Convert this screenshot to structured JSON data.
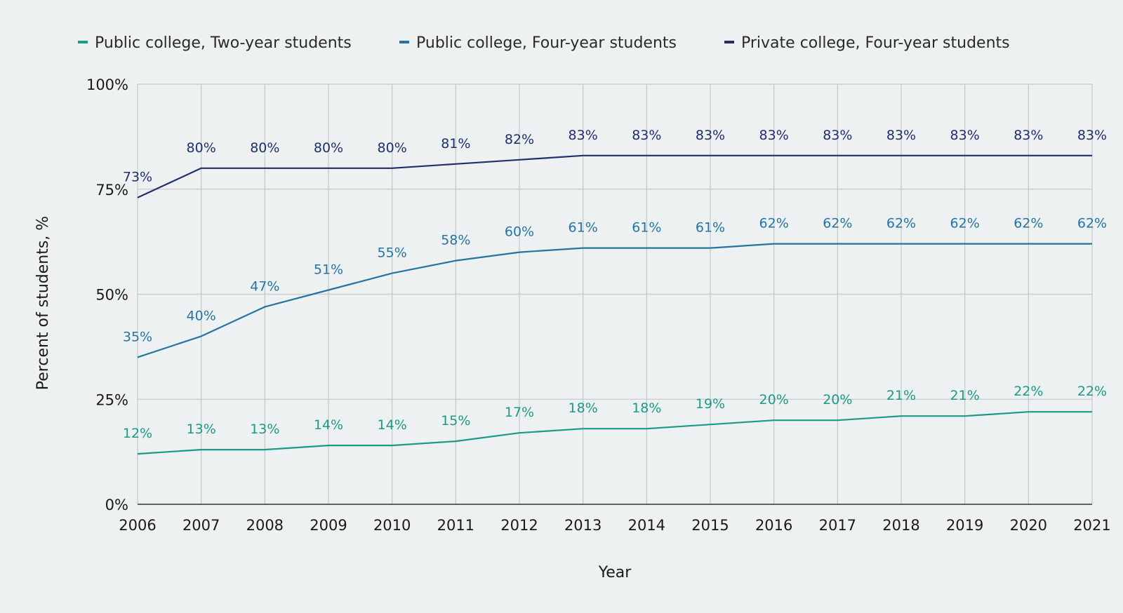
{
  "chart_data": {
    "type": "line",
    "x": [
      2006,
      2007,
      2008,
      2009,
      2010,
      2011,
      2012,
      2013,
      2014,
      2015,
      2016,
      2017,
      2018,
      2019,
      2020,
      2021
    ],
    "series": [
      {
        "name": "Public college, Two-year students",
        "color": "#1b9a86",
        "values": [
          12,
          13,
          13,
          14,
          14,
          15,
          17,
          18,
          18,
          19,
          20,
          20,
          21,
          21,
          22,
          22
        ]
      },
      {
        "name": "Public college, Four-year students",
        "color": "#2574a1",
        "values": [
          35,
          40,
          47,
          51,
          55,
          58,
          60,
          61,
          61,
          61,
          62,
          62,
          62,
          62,
          62,
          62
        ]
      },
      {
        "name": "Private college, Four-year students",
        "color": "#1e2f6c",
        "values": [
          73,
          80,
          80,
          80,
          80,
          81,
          82,
          83,
          83,
          83,
          83,
          83,
          83,
          83,
          83,
          83
        ]
      }
    ],
    "value_suffix": "%",
    "y_ticks": [
      "0%",
      "25%",
      "50%",
      "75%",
      "100%"
    ],
    "ylim": [
      0,
      100
    ],
    "xlabel": "Year",
    "ylabel": "Percent of students, %",
    "grid": true,
    "legend_position": "top"
  }
}
